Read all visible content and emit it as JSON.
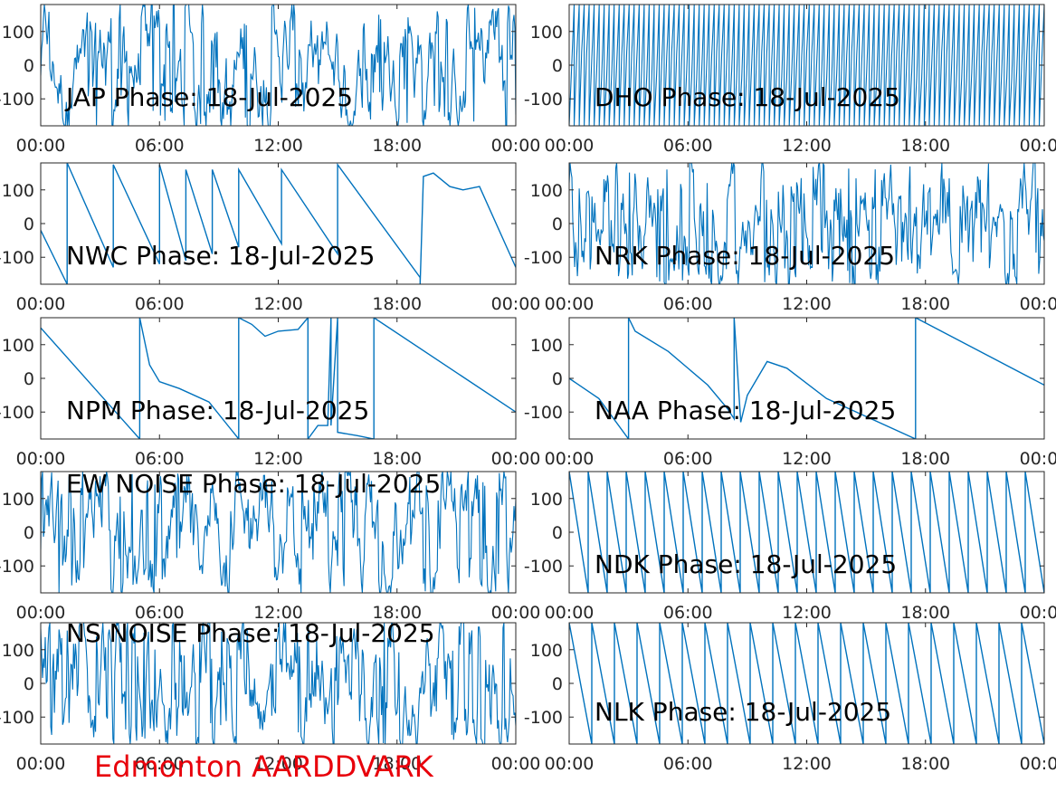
{
  "station_label": "Edmonton AARDDVARK",
  "colors": {
    "trace": "#0072bd",
    "axes": "#262626",
    "station_label": "#e8000b",
    "background": "#ffffff"
  },
  "chart_data": [
    {
      "type": "line",
      "title": "JAP Phase: 18-Jul-2025",
      "ylim": [
        -180,
        180
      ],
      "yticks": [
        100,
        0,
        -100
      ],
      "ytick_labels": [
        "100",
        "0",
        "-100"
      ],
      "xlim": [
        "00:00",
        "24:00"
      ],
      "xtick_labels": [
        "00:00",
        "06:00",
        "12:00",
        "18:00",
        "00:00"
      ],
      "grid": false,
      "series": [
        {
          "style": "noise",
          "x": [
            "00:00",
            "24:00"
          ],
          "y": [
            -180,
            180
          ]
        }
      ]
    },
    {
      "type": "line",
      "title": "DHO Phase: 18-Jul-2025",
      "ylim": [
        -180,
        180
      ],
      "yticks": [
        100,
        0,
        -100
      ],
      "ytick_labels": [
        "100",
        "0",
        "-100"
      ],
      "xlim": [
        "00:00",
        "24:00"
      ],
      "xtick_labels": [
        "00:00",
        "06:00",
        "12:00",
        "18:00",
        "00:00"
      ],
      "grid": false,
      "series": [
        {
          "style": "rapid_wrap",
          "x": [
            "00:00",
            "24:00"
          ],
          "y": [
            -180,
            180
          ]
        }
      ]
    },
    {
      "type": "line",
      "title": "NWC Phase: 18-Jul-2025",
      "ylim": [
        -180,
        180
      ],
      "yticks": [
        100,
        0,
        -100
      ],
      "ytick_labels": [
        "100",
        "0",
        "-100"
      ],
      "xlim": [
        "00:00",
        "24:00"
      ],
      "xtick_labels": [
        "00:00",
        "06:00",
        "12:00",
        "18:00",
        "00:00"
      ],
      "grid": false,
      "series": [
        {
          "x": [
            "00:00",
            "01:20",
            "01:20",
            "03:40",
            "03:40",
            "06:00",
            "06:00",
            "07:20",
            "07:20",
            "08:40",
            "08:40",
            "10:00",
            "10:00",
            "12:10",
            "12:10",
            "15:00",
            "15:00",
            "19:10",
            "19:10",
            "19:20",
            "19:50",
            "20:40",
            "21:20",
            "22:10",
            "24:00"
          ],
          "y": [
            -20,
            -180,
            180,
            -130,
            175,
            -120,
            175,
            -110,
            160,
            -90,
            160,
            -70,
            160,
            -60,
            160,
            -90,
            175,
            -160,
            -180,
            140,
            150,
            110,
            100,
            110,
            -130
          ]
        }
      ]
    },
    {
      "type": "line",
      "title": "NRK Phase: 18-Jul-2025",
      "ylim": [
        -180,
        180
      ],
      "yticks": [
        100,
        0,
        -100
      ],
      "ytick_labels": [
        "100",
        "0",
        "-100"
      ],
      "xlim": [
        "00:00",
        "24:00"
      ],
      "xtick_labels": [
        "00:00",
        "06:00",
        "12:00",
        "18:00",
        "00:00"
      ],
      "grid": false,
      "series": [
        {
          "style": "noise",
          "x": [
            "00:00",
            "24:00"
          ],
          "y": [
            -180,
            180
          ]
        }
      ]
    },
    {
      "type": "line",
      "title": "NPM Phase: 18-Jul-2025",
      "ylim": [
        -180,
        180
      ],
      "yticks": [
        100,
        0,
        -100
      ],
      "ytick_labels": [
        "100",
        "0",
        "-100"
      ],
      "xlim": [
        "00:00",
        "24:00"
      ],
      "xtick_labels": [
        "00:00",
        "06:00",
        "12:00",
        "18:00",
        "00:00"
      ],
      "grid": false,
      "series": [
        {
          "x": [
            "00:00",
            "05:00",
            "05:00",
            "05:30",
            "06:00",
            "07:00",
            "08:30",
            "10:00",
            "10:00",
            "10:40",
            "11:20",
            "12:00",
            "13:00",
            "13:30",
            "13:30",
            "14:00",
            "14:30",
            "14:40",
            "14:40",
            "15:00",
            "15:00",
            "16:00",
            "16:50",
            "16:50",
            "24:00"
          ],
          "y": [
            150,
            -180,
            180,
            40,
            -10,
            -30,
            -70,
            -180,
            180,
            160,
            125,
            140,
            145,
            180,
            -180,
            -140,
            -140,
            180,
            -140,
            180,
            -160,
            -170,
            -180,
            180,
            -100
          ]
        }
      ]
    },
    {
      "type": "line",
      "title": "NAA Phase: 18-Jul-2025",
      "ylim": [
        -180,
        180
      ],
      "yticks": [
        100,
        0,
        -100
      ],
      "ytick_labels": [
        "100",
        "0",
        "-100"
      ],
      "xlim": [
        "00:00",
        "24:00"
      ],
      "xtick_labels": [
        "00:00",
        "06:00",
        "12:00",
        "18:00",
        "00:00"
      ],
      "grid": false,
      "series": [
        {
          "x": [
            "00:00",
            "01:30",
            "03:00",
            "03:00",
            "03:20",
            "05:00",
            "07:00",
            "08:00",
            "08:20",
            "08:20",
            "08:40",
            "09:00",
            "10:00",
            "11:00",
            "13:00",
            "17:30",
            "17:30",
            "24:00"
          ],
          "y": [
            0,
            -60,
            -180,
            180,
            140,
            80,
            -20,
            -90,
            -120,
            180,
            -130,
            -50,
            50,
            30,
            -60,
            -180,
            180,
            -20
          ]
        }
      ]
    },
    {
      "type": "line",
      "title": "EW NOISE Phase: 18-Jul-2025",
      "ylim": [
        -180,
        180
      ],
      "yticks": [
        100,
        0,
        -100
      ],
      "ytick_labels": [
        "100",
        "0",
        "-100"
      ],
      "xlim": [
        "00:00",
        "24:00"
      ],
      "xtick_labels": [
        "00:00",
        "06:00",
        "12:00",
        "18:00",
        "00:00"
      ],
      "grid": false,
      "series": [
        {
          "style": "noise",
          "x": [
            "00:00",
            "24:00"
          ],
          "y": [
            -180,
            180
          ]
        }
      ]
    },
    {
      "type": "line",
      "title": "NDK Phase: 18-Jul-2025",
      "ylim": [
        -180,
        180
      ],
      "yticks": [
        100,
        0,
        -100
      ],
      "ytick_labels": [
        "100",
        "0",
        "-100"
      ],
      "xlim": [
        "00:00",
        "24:00"
      ],
      "xtick_labels": [
        "00:00",
        "06:00",
        "12:00",
        "18:00",
        "00:00"
      ],
      "grid": false,
      "series": [
        {
          "style": "sawtooth",
          "direction": "down",
          "cycles": 25,
          "x": [
            "00:00",
            "24:00"
          ],
          "y": [
            -180,
            180
          ]
        }
      ]
    },
    {
      "type": "line",
      "title": "NS NOISE Phase: 18-Jul-2025",
      "ylim": [
        -180,
        180
      ],
      "yticks": [
        100,
        0,
        -100
      ],
      "ytick_labels": [
        "100",
        "0",
        "-100"
      ],
      "xlim": [
        "00:00",
        "24:00"
      ],
      "xtick_labels": [
        "00:00",
        "06:00",
        "12:00",
        "18:00",
        "00:00"
      ],
      "grid": false,
      "series": [
        {
          "style": "noise",
          "x": [
            "00:00",
            "24:00"
          ],
          "y": [
            -180,
            180
          ]
        }
      ]
    },
    {
      "type": "line",
      "title": "NLK Phase: 18-Jul-2025",
      "ylim": [
        -180,
        180
      ],
      "yticks": [
        100,
        0,
        -100
      ],
      "ytick_labels": [
        "100",
        "0",
        "-100"
      ],
      "xlim": [
        "00:00",
        "24:00"
      ],
      "xtick_labels": [
        "00:00",
        "06:00",
        "12:00",
        "18:00",
        "00:00"
      ],
      "grid": false,
      "series": [
        {
          "style": "sawtooth",
          "direction": "down",
          "cycles": 21,
          "x": [
            "00:00",
            "24:00"
          ],
          "y": [
            -180,
            180
          ]
        }
      ]
    }
  ]
}
